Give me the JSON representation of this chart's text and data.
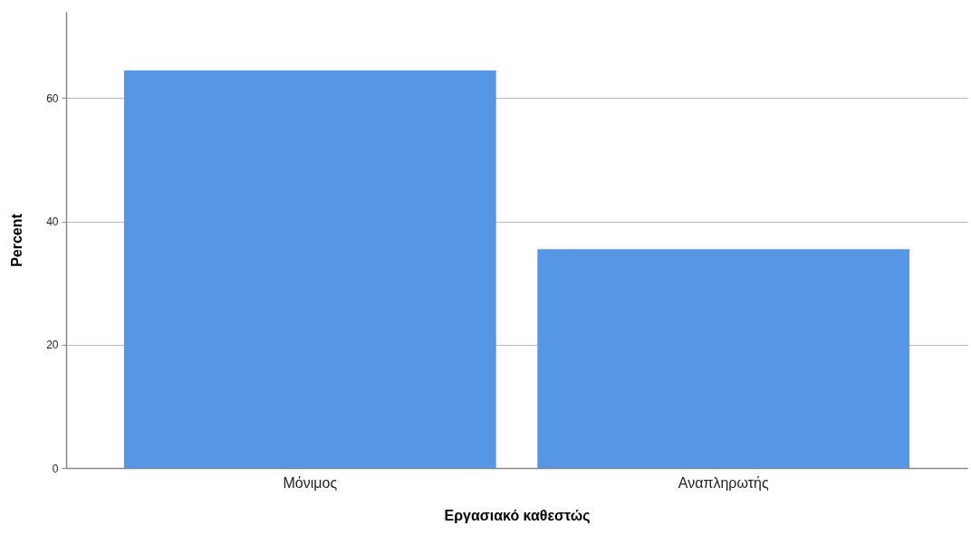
{
  "chart_data": {
    "type": "bar",
    "xlabel": "Εργασιακό καθεστώς",
    "ylabel": "Percent",
    "categories": [
      "Μόνιμος",
      "Αναπληρωτής"
    ],
    "values": [
      64.5,
      35.5
    ],
    "color": "#5596e5",
    "ylim": [
      0,
      74
    ],
    "yticks": [
      0,
      20,
      40,
      60
    ],
    "grid": "y"
  }
}
